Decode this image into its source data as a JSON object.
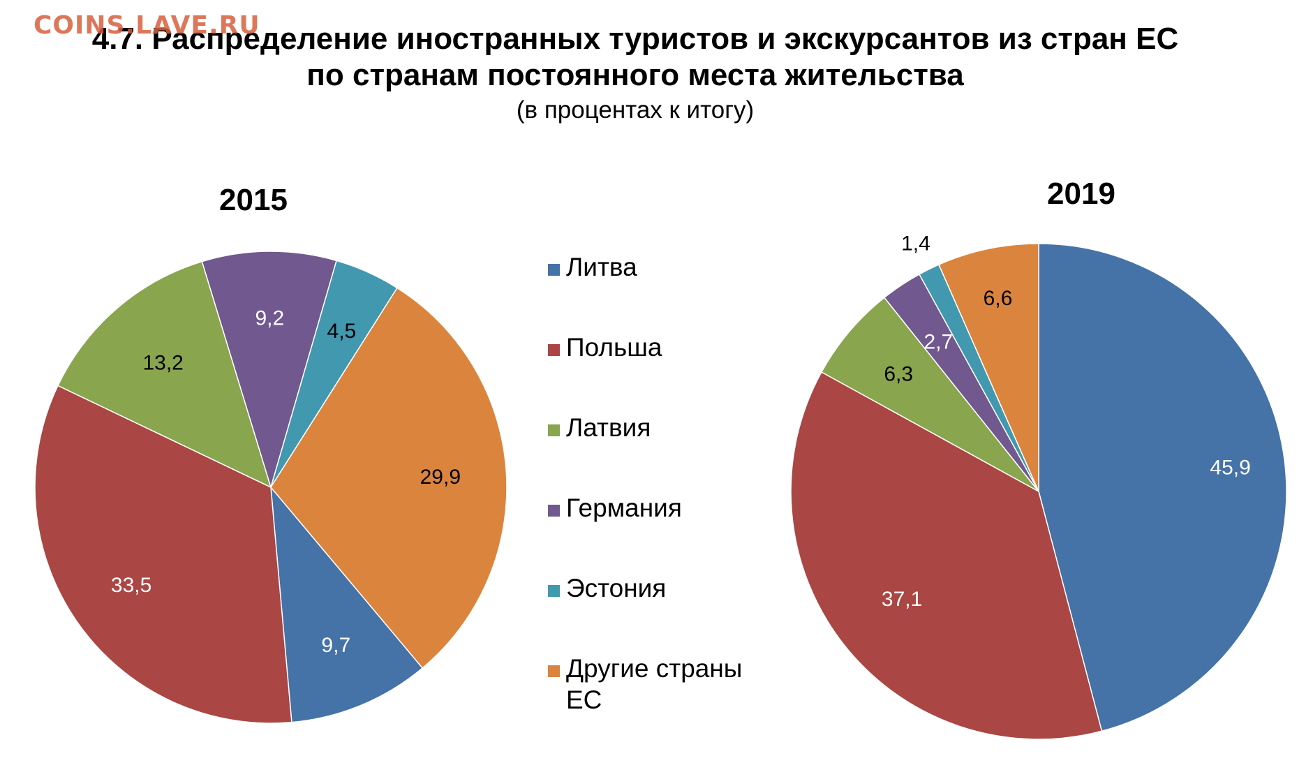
{
  "watermark": "COINS.LAVE.RU",
  "title_line1": "4.7. Распределение иностранных туристов и экскурсантов из стран ЕС",
  "title_line2": "по странам постоянного места жительства",
  "subtitle": "(в процентах к итогу)",
  "colors": {
    "Литва": "#4572a7",
    "Польша": "#aa4643",
    "Латвия": "#89a54e",
    "Германия": "#71588f",
    "Эстония": "#4198af",
    "Другие страны ЕС": "#db843d"
  },
  "legend": [
    {
      "label": "Литва",
      "color": "#4572a7"
    },
    {
      "label": "Польша",
      "color": "#aa4643"
    },
    {
      "label": "Латвия",
      "color": "#89a54e"
    },
    {
      "label": "Германия",
      "color": "#71588f"
    },
    {
      "label": "Эстония",
      "color": "#4198af"
    },
    {
      "label": "Другие страны ЕС",
      "color": "#db843d"
    }
  ],
  "chart_data": [
    {
      "type": "pie",
      "title": "2015",
      "categories": [
        "Литва",
        "Польша",
        "Латвия",
        "Германия",
        "Эстония",
        "Другие страны ЕС"
      ],
      "values": [
        9.7,
        33.5,
        13.2,
        9.2,
        4.5,
        29.9
      ],
      "labels": [
        "9,7",
        "33,5",
        "13,2",
        "9,2",
        "4,5",
        "29,9"
      ],
      "start_angle_deg": 140,
      "legend_position": "between charts"
    },
    {
      "type": "pie",
      "title": "2019",
      "categories": [
        "Литва",
        "Польша",
        "Латвия",
        "Германия",
        "Эстония",
        "Другие страны ЕС"
      ],
      "values": [
        45.9,
        37.1,
        6.3,
        2.7,
        1.4,
        6.6
      ],
      "labels": [
        "45,9",
        "37,1",
        "6,3",
        "2,7",
        "1,4",
        "6,6"
      ],
      "start_angle_deg": 0,
      "legend_position": "between charts"
    }
  ]
}
